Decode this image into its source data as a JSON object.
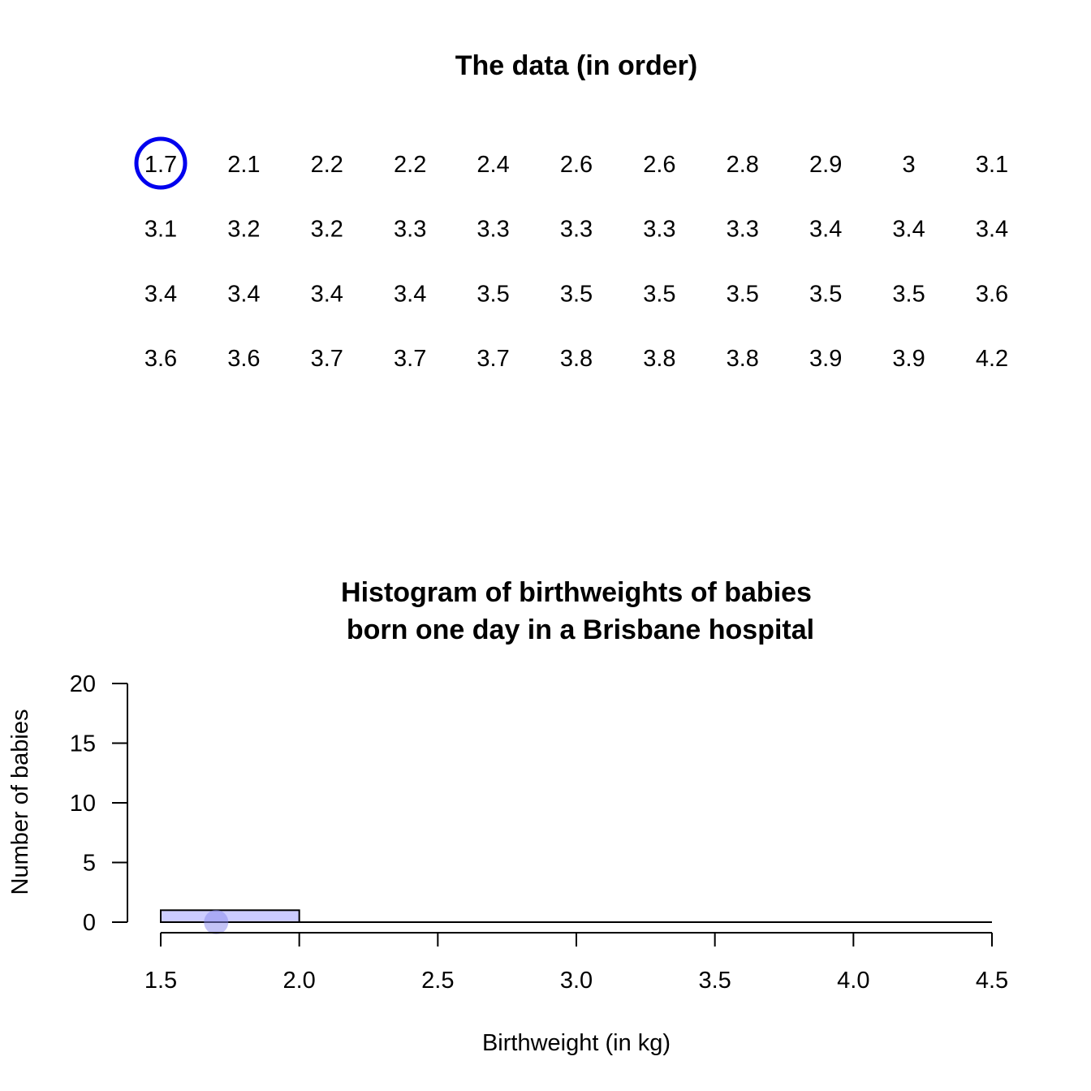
{
  "chart_data": [
    {
      "type": "table",
      "title": "The data (in order)",
      "values": [
        1.7,
        2.1,
        2.2,
        2.2,
        2.4,
        2.6,
        2.6,
        2.8,
        2.9,
        3,
        3.1,
        3.1,
        3.2,
        3.2,
        3.3,
        3.3,
        3.3,
        3.3,
        3.3,
        3.4,
        3.4,
        3.4,
        3.4,
        3.4,
        3.4,
        3.4,
        3.5,
        3.5,
        3.5,
        3.5,
        3.5,
        3.5,
        3.6,
        3.6,
        3.6,
        3.7,
        3.7,
        3.7,
        3.8,
        3.8,
        3.8,
        3.9,
        3.9,
        4.2
      ],
      "columns": 11,
      "highlighted_index": 0,
      "highlight_color": "#0000ee"
    },
    {
      "type": "bar",
      "title_lines": [
        "Histogram of birthweights of babies",
        "born one day in a Brisbane hospital"
      ],
      "xlabel": "Birthweight (in kg)",
      "ylabel": "Number of babies",
      "xlim": [
        1.5,
        4.5
      ],
      "ylim": [
        0,
        20
      ],
      "xticks": [
        "1.5",
        "2.0",
        "2.5",
        "3.0",
        "3.5",
        "4.0",
        "4.5"
      ],
      "yticks": [
        "0",
        "5",
        "10",
        "15",
        "20"
      ],
      "bins": [
        {
          "from": 1.5,
          "to": 2.0,
          "count": 1
        }
      ],
      "highlight_point": {
        "x": 1.7,
        "y": 0
      },
      "bar_fill": "#ccccff",
      "point_fill": "#8888ee"
    }
  ]
}
